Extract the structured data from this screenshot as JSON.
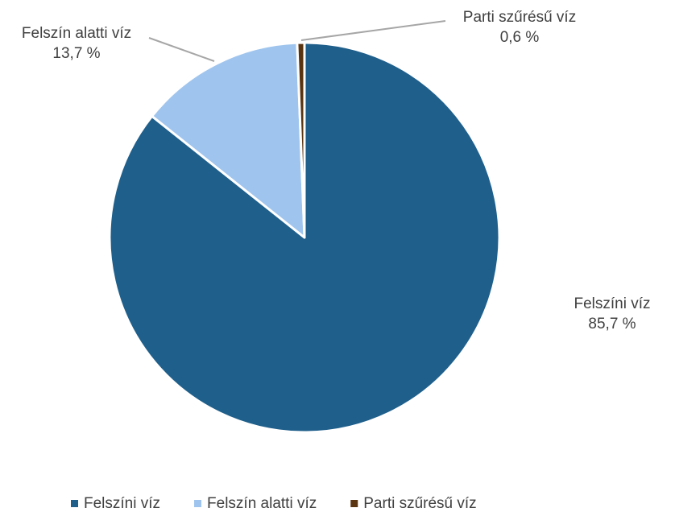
{
  "chart_data": {
    "type": "pie",
    "categories": [
      "Felszíni víz",
      "Felszín alatti víz",
      "Parti szűrésű víz"
    ],
    "values": [
      85.7,
      13.7,
      0.6
    ],
    "value_labels": [
      "85,7 %",
      "13,7 %",
      "0,6 %"
    ],
    "colors": [
      "#1f5f8b",
      "#9fc5ee",
      "#5a3410"
    ],
    "legend": "bottom"
  }
}
